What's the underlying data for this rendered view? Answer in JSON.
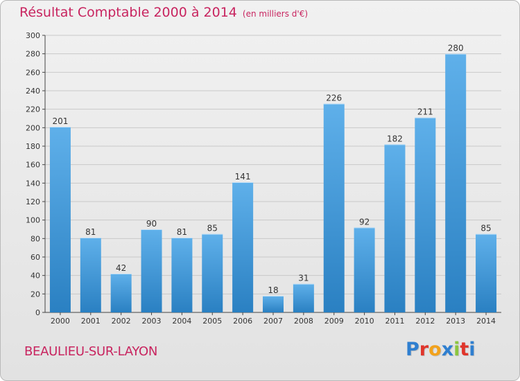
{
  "header": {
    "title": "Résultat Comptable 2000 à 2014",
    "subtitle": "(en milliers d'€)"
  },
  "footer": {
    "commune": "BEAULIEU-SUR-LAYON",
    "logo_text": "Proxiti"
  },
  "colors": {
    "accent": "#c8245f",
    "bar_top": "#5fb0ea",
    "bar_bottom": "#2a80c2",
    "logo_letters": [
      "#2f7fd0",
      "#e0352b",
      "#f2a21c",
      "#2f7fd0",
      "#8cc63f",
      "#e0352b",
      "#2f7fd0"
    ]
  },
  "chart_data": {
    "type": "bar",
    "title": "Résultat Comptable 2000 à 2014",
    "subtitle": "(en milliers d'€)",
    "categories": [
      "2000",
      "2001",
      "2002",
      "2003",
      "2004",
      "2005",
      "2006",
      "2007",
      "2008",
      "2009",
      "2010",
      "2011",
      "2012",
      "2013",
      "2014"
    ],
    "values": [
      201,
      81,
      42,
      90,
      81,
      85,
      141,
      18,
      31,
      226,
      92,
      182,
      211,
      280,
      85
    ],
    "ylim": [
      0,
      300
    ],
    "yticks": [
      0,
      20,
      40,
      60,
      80,
      100,
      120,
      140,
      160,
      180,
      200,
      220,
      240,
      260,
      280,
      300
    ],
    "grid": true,
    "data_labels": true
  }
}
